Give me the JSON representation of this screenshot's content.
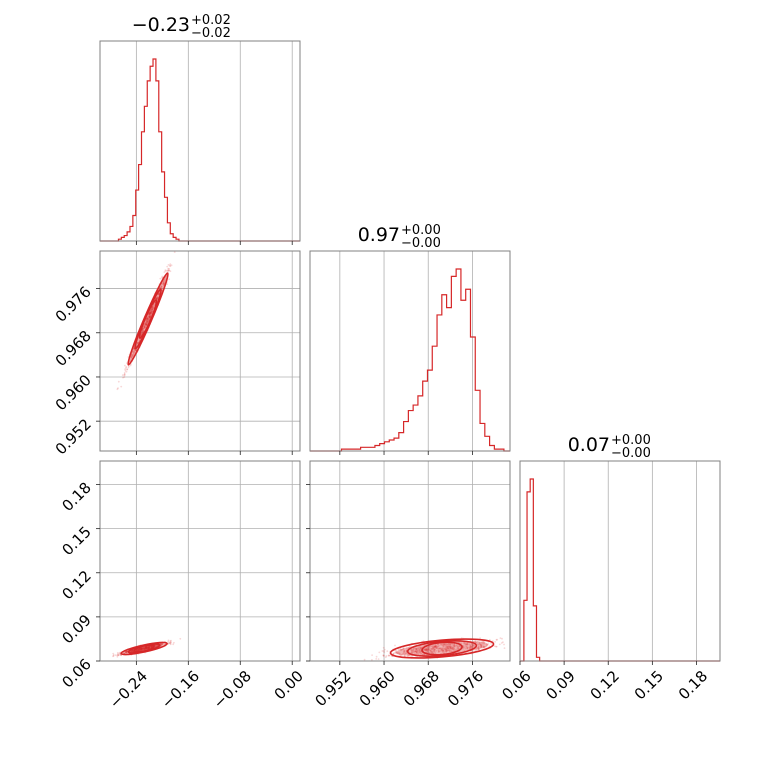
{
  "figure": {
    "type": "corner-plot",
    "color": "#d62728",
    "grid_color": "#b0b0b0",
    "frame_color": "#808080"
  },
  "chart_data": {
    "type": "scatter",
    "parameters": [
      {
        "id": "p0",
        "title": {
          "median": "−0.23",
          "upper": "+0.02",
          "lower": "−0.02"
        },
        "range": [
          -0.296,
          0.012
        ],
        "ticks": [
          -0.24,
          -0.16,
          -0.08,
          0.0
        ],
        "tick_labels": [
          "−0.24",
          "−0.16",
          "−0.08",
          "0.00"
        ],
        "hist": [
          0.0,
          0.01,
          0.02,
          0.03,
          0.05,
          0.08,
          0.14,
          0.28,
          0.42,
          0.6,
          0.74,
          0.88,
          0.96,
          1.0,
          0.88,
          0.6,
          0.38,
          0.24,
          0.1,
          0.04,
          0.02,
          0.01,
          0.0
        ],
        "hist_range": [
          -0.272,
          -0.17
        ]
      },
      {
        "id": "p1",
        "title": {
          "median": "0.97",
          "upper": "+0.00",
          "lower": "−0.00"
        },
        "range": [
          0.9466,
          0.9828
        ],
        "ticks": [
          0.952,
          0.96,
          0.968,
          0.976
        ],
        "tick_labels": [
          "0.952",
          "0.960",
          "0.968",
          "0.976"
        ],
        "hist": [
          0.01,
          0.01,
          0.01,
          0.01,
          0.02,
          0.02,
          0.02,
          0.03,
          0.04,
          0.05,
          0.06,
          0.07,
          0.1,
          0.16,
          0.22,
          0.25,
          0.3,
          0.38,
          0.44,
          0.57,
          0.74,
          0.85,
          0.78,
          0.95,
          0.99,
          0.82,
          0.88,
          0.62,
          0.33,
          0.15,
          0.08,
          0.03,
          0.01,
          0.01
        ],
        "hist_range": [
          0.9523,
          0.9817
        ]
      },
      {
        "id": "p2",
        "title": {
          "median": "0.07",
          "upper": "+0.00",
          "lower": "−0.00"
        },
        "range": [
          0.06,
          0.196
        ],
        "ticks": [
          0.06,
          0.09,
          0.12,
          0.15,
          0.18
        ],
        "tick_labels": [
          "0.06",
          "0.09",
          "0.12",
          "0.15",
          "0.18"
        ],
        "hist": [
          0.0,
          0.33,
          0.92,
          0.99,
          0.3,
          0.02,
          0.0
        ],
        "hist_range": [
          0.0605,
          0.0755
        ]
      }
    ],
    "joint": [
      {
        "x": "p0",
        "y": "p1",
        "center": [
          -0.222,
          0.9705
        ],
        "axis_end_a": [
          -0.29,
          0.951
        ],
        "axis_end_b": [
          -0.175,
          0.9825
        ],
        "width_fraction": 0.04,
        "contour_levels": [
          0.35,
          0.55,
          0.85
        ]
      },
      {
        "x": "p0",
        "y": "p2",
        "center": [
          -0.228,
          0.0685
        ],
        "axis_end_a": [
          -0.285,
          0.0635
        ],
        "axis_end_b": [
          -0.165,
          0.075
        ],
        "width_fraction": 0.085,
        "contour_levels": [
          0.4,
          0.65,
          0.95
        ]
      },
      {
        "x": "p1",
        "y": "p2",
        "center": [
          0.9705,
          0.0685
        ],
        "axis_end_a": [
          0.9488,
          0.0635
        ],
        "axis_end_b": [
          0.9822,
          0.0745
        ],
        "width_fraction": 0.09,
        "contour_levels": [
          0.35,
          0.6,
          0.9
        ]
      }
    ],
    "grid": true,
    "legend": "none"
  }
}
